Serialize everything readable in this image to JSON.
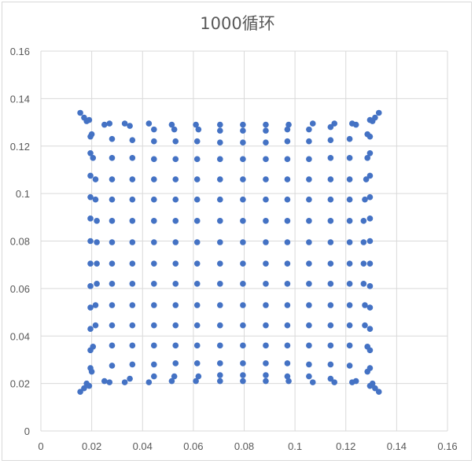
{
  "chart_data": {
    "type": "scatter",
    "title": "1000循环",
    "xlabel": "",
    "ylabel": "",
    "xlim": [
      0,
      0.16
    ],
    "ylim": [
      0,
      0.16
    ],
    "xticks": [
      "0",
      "0.02",
      "0.04",
      "0.06",
      "0.08",
      "0.1",
      "0.12",
      "0.14",
      "0.16"
    ],
    "yticks": [
      "0",
      "0.02",
      "0.04",
      "0.06",
      "0.08",
      "0.1",
      "0.12",
      "0.14",
      "0.16"
    ],
    "grid": true,
    "legend": "none",
    "marker_color": "#4472c4",
    "gridline_color": "#d9d9d9",
    "series": [
      {
        "points": [
          [
            0.0155,
            0.0165
          ],
          [
            0.017,
            0.018
          ],
          [
            0.018,
            0.02
          ],
          [
            0.019,
            0.019
          ],
          [
            0.0155,
            0.134
          ],
          [
            0.017,
            0.132
          ],
          [
            0.018,
            0.1305
          ],
          [
            0.019,
            0.131
          ],
          [
            0.133,
            0.0165
          ],
          [
            0.1315,
            0.018
          ],
          [
            0.1305,
            0.02
          ],
          [
            0.1295,
            0.019
          ],
          [
            0.133,
            0.134
          ],
          [
            0.1315,
            0.132
          ],
          [
            0.1305,
            0.1305
          ],
          [
            0.1295,
            0.131
          ],
          [
            0.025,
            0.129
          ],
          [
            0.027,
            0.1295
          ],
          [
            0.033,
            0.1295
          ],
          [
            0.035,
            0.1285
          ],
          [
            0.0425,
            0.1295
          ],
          [
            0.0445,
            0.127
          ],
          [
            0.0515,
            0.129
          ],
          [
            0.0525,
            0.127
          ],
          [
            0.061,
            0.129
          ],
          [
            0.062,
            0.127
          ],
          [
            0.0705,
            0.129
          ],
          [
            0.0705,
            0.1265
          ],
          [
            0.0795,
            0.129
          ],
          [
            0.0795,
            0.1265
          ],
          [
            0.0885,
            0.129
          ],
          [
            0.0885,
            0.1265
          ],
          [
            0.0975,
            0.129
          ],
          [
            0.097,
            0.127
          ],
          [
            0.107,
            0.1295
          ],
          [
            0.1055,
            0.127
          ],
          [
            0.1155,
            0.1295
          ],
          [
            0.114,
            0.128
          ],
          [
            0.1225,
            0.1295
          ],
          [
            0.124,
            0.129
          ],
          [
            0.025,
            0.021
          ],
          [
            0.027,
            0.0205
          ],
          [
            0.033,
            0.0205
          ],
          [
            0.035,
            0.022
          ],
          [
            0.0425,
            0.0205
          ],
          [
            0.0445,
            0.023
          ],
          [
            0.0515,
            0.021
          ],
          [
            0.0525,
            0.023
          ],
          [
            0.061,
            0.021
          ],
          [
            0.062,
            0.023
          ],
          [
            0.0705,
            0.021
          ],
          [
            0.0705,
            0.0235
          ],
          [
            0.0795,
            0.021
          ],
          [
            0.0795,
            0.0235
          ],
          [
            0.0885,
            0.021
          ],
          [
            0.0885,
            0.0235
          ],
          [
            0.0975,
            0.021
          ],
          [
            0.097,
            0.023
          ],
          [
            0.107,
            0.0205
          ],
          [
            0.1055,
            0.023
          ],
          [
            0.1155,
            0.0205
          ],
          [
            0.114,
            0.022
          ],
          [
            0.1225,
            0.0205
          ],
          [
            0.124,
            0.021
          ],
          [
            0.0195,
            0.124
          ],
          [
            0.02,
            0.125
          ],
          [
            0.0195,
            0.117
          ],
          [
            0.0205,
            0.115
          ],
          [
            0.0195,
            0.1075
          ],
          [
            0.0215,
            0.106
          ],
          [
            0.0195,
            0.0985
          ],
          [
            0.0215,
            0.0975
          ],
          [
            0.0195,
            0.0895
          ],
          [
            0.022,
            0.0885
          ],
          [
            0.0195,
            0.08
          ],
          [
            0.022,
            0.0795
          ],
          [
            0.0195,
            0.0705
          ],
          [
            0.022,
            0.0705
          ],
          [
            0.0195,
            0.061
          ],
          [
            0.022,
            0.062
          ],
          [
            0.0195,
            0.052
          ],
          [
            0.0215,
            0.053
          ],
          [
            0.0195,
            0.043
          ],
          [
            0.0215,
            0.0445
          ],
          [
            0.0195,
            0.034
          ],
          [
            0.0205,
            0.0355
          ],
          [
            0.0195,
            0.0265
          ],
          [
            0.02,
            0.025
          ],
          [
            0.1295,
            0.124
          ],
          [
            0.1285,
            0.125
          ],
          [
            0.1295,
            0.117
          ],
          [
            0.1285,
            0.115
          ],
          [
            0.1295,
            0.1075
          ],
          [
            0.128,
            0.106
          ],
          [
            0.1295,
            0.0985
          ],
          [
            0.1275,
            0.0975
          ],
          [
            0.1295,
            0.0895
          ],
          [
            0.127,
            0.0885
          ],
          [
            0.1295,
            0.08
          ],
          [
            0.127,
            0.0795
          ],
          [
            0.1295,
            0.0705
          ],
          [
            0.127,
            0.0705
          ],
          [
            0.1295,
            0.061
          ],
          [
            0.127,
            0.062
          ],
          [
            0.1295,
            0.052
          ],
          [
            0.1275,
            0.053
          ],
          [
            0.1295,
            0.043
          ],
          [
            0.1275,
            0.0445
          ],
          [
            0.1295,
            0.034
          ],
          [
            0.1285,
            0.0355
          ],
          [
            0.1295,
            0.0265
          ],
          [
            0.1285,
            0.025
          ],
          [
            0.028,
            0.123
          ],
          [
            0.036,
            0.1225
          ],
          [
            0.0445,
            0.122
          ],
          [
            0.053,
            0.122
          ],
          [
            0.0615,
            0.122
          ],
          [
            0.0705,
            0.1215
          ],
          [
            0.0795,
            0.1215
          ],
          [
            0.0885,
            0.1215
          ],
          [
            0.097,
            0.122
          ],
          [
            0.1055,
            0.122
          ],
          [
            0.114,
            0.1225
          ],
          [
            0.1215,
            0.123
          ],
          [
            0.028,
            0.115
          ],
          [
            0.036,
            0.115
          ],
          [
            0.0445,
            0.1145
          ],
          [
            0.053,
            0.1145
          ],
          [
            0.0615,
            0.1145
          ],
          [
            0.0705,
            0.1145
          ],
          [
            0.0795,
            0.1145
          ],
          [
            0.0885,
            0.1145
          ],
          [
            0.097,
            0.1145
          ],
          [
            0.1055,
            0.1145
          ],
          [
            0.114,
            0.115
          ],
          [
            0.1215,
            0.115
          ],
          [
            0.028,
            0.106
          ],
          [
            0.036,
            0.106
          ],
          [
            0.0445,
            0.106
          ],
          [
            0.053,
            0.106
          ],
          [
            0.0615,
            0.106
          ],
          [
            0.0705,
            0.106
          ],
          [
            0.0795,
            0.106
          ],
          [
            0.0885,
            0.106
          ],
          [
            0.097,
            0.106
          ],
          [
            0.1055,
            0.106
          ],
          [
            0.114,
            0.106
          ],
          [
            0.1215,
            0.106
          ],
          [
            0.028,
            0.0975
          ],
          [
            0.036,
            0.0975
          ],
          [
            0.0445,
            0.0975
          ],
          [
            0.053,
            0.0975
          ],
          [
            0.0615,
            0.0975
          ],
          [
            0.0705,
            0.0975
          ],
          [
            0.0795,
            0.0975
          ],
          [
            0.0885,
            0.0975
          ],
          [
            0.097,
            0.0975
          ],
          [
            0.1055,
            0.0975
          ],
          [
            0.114,
            0.0975
          ],
          [
            0.1215,
            0.0975
          ],
          [
            0.028,
            0.0885
          ],
          [
            0.036,
            0.0885
          ],
          [
            0.0445,
            0.0885
          ],
          [
            0.053,
            0.0885
          ],
          [
            0.0615,
            0.0885
          ],
          [
            0.0705,
            0.0885
          ],
          [
            0.0795,
            0.0885
          ],
          [
            0.0885,
            0.0885
          ],
          [
            0.097,
            0.0885
          ],
          [
            0.1055,
            0.0885
          ],
          [
            0.114,
            0.0885
          ],
          [
            0.1215,
            0.0885
          ],
          [
            0.028,
            0.0795
          ],
          [
            0.036,
            0.0795
          ],
          [
            0.0445,
            0.0795
          ],
          [
            0.053,
            0.0795
          ],
          [
            0.0615,
            0.0795
          ],
          [
            0.0705,
            0.0795
          ],
          [
            0.0795,
            0.0795
          ],
          [
            0.0885,
            0.0795
          ],
          [
            0.097,
            0.0795
          ],
          [
            0.1055,
            0.0795
          ],
          [
            0.114,
            0.0795
          ],
          [
            0.1215,
            0.0795
          ],
          [
            0.028,
            0.0705
          ],
          [
            0.036,
            0.0705
          ],
          [
            0.0445,
            0.0705
          ],
          [
            0.053,
            0.0705
          ],
          [
            0.0615,
            0.0705
          ],
          [
            0.0705,
            0.0705
          ],
          [
            0.0795,
            0.0705
          ],
          [
            0.0885,
            0.0705
          ],
          [
            0.097,
            0.0705
          ],
          [
            0.1055,
            0.0705
          ],
          [
            0.114,
            0.0705
          ],
          [
            0.1215,
            0.0705
          ],
          [
            0.028,
            0.062
          ],
          [
            0.036,
            0.062
          ],
          [
            0.0445,
            0.062
          ],
          [
            0.053,
            0.062
          ],
          [
            0.0615,
            0.062
          ],
          [
            0.0705,
            0.062
          ],
          [
            0.0795,
            0.062
          ],
          [
            0.0885,
            0.062
          ],
          [
            0.097,
            0.062
          ],
          [
            0.1055,
            0.062
          ],
          [
            0.114,
            0.062
          ],
          [
            0.1215,
            0.062
          ],
          [
            0.028,
            0.053
          ],
          [
            0.036,
            0.053
          ],
          [
            0.0445,
            0.053
          ],
          [
            0.053,
            0.053
          ],
          [
            0.0615,
            0.053
          ],
          [
            0.0705,
            0.053
          ],
          [
            0.0795,
            0.053
          ],
          [
            0.0885,
            0.053
          ],
          [
            0.097,
            0.053
          ],
          [
            0.1055,
            0.053
          ],
          [
            0.114,
            0.053
          ],
          [
            0.1215,
            0.053
          ],
          [
            0.028,
            0.0445
          ],
          [
            0.036,
            0.0445
          ],
          [
            0.0445,
            0.0445
          ],
          [
            0.053,
            0.0445
          ],
          [
            0.0615,
            0.0445
          ],
          [
            0.0705,
            0.0445
          ],
          [
            0.0795,
            0.0445
          ],
          [
            0.0885,
            0.0445
          ],
          [
            0.097,
            0.0445
          ],
          [
            0.1055,
            0.0445
          ],
          [
            0.114,
            0.0445
          ],
          [
            0.1215,
            0.0445
          ],
          [
            0.028,
            0.036
          ],
          [
            0.036,
            0.036
          ],
          [
            0.0445,
            0.036
          ],
          [
            0.053,
            0.036
          ],
          [
            0.0615,
            0.036
          ],
          [
            0.0705,
            0.036
          ],
          [
            0.0795,
            0.036
          ],
          [
            0.0885,
            0.036
          ],
          [
            0.097,
            0.036
          ],
          [
            0.1055,
            0.036
          ],
          [
            0.114,
            0.036
          ],
          [
            0.1215,
            0.036
          ],
          [
            0.028,
            0.0275
          ],
          [
            0.036,
            0.028
          ],
          [
            0.0445,
            0.028
          ],
          [
            0.053,
            0.0285
          ],
          [
            0.0615,
            0.0285
          ],
          [
            0.0705,
            0.0285
          ],
          [
            0.0795,
            0.0285
          ],
          [
            0.0885,
            0.0285
          ],
          [
            0.097,
            0.0285
          ],
          [
            0.1055,
            0.028
          ],
          [
            0.114,
            0.028
          ],
          [
            0.1215,
            0.0275
          ]
        ]
      }
    ]
  }
}
